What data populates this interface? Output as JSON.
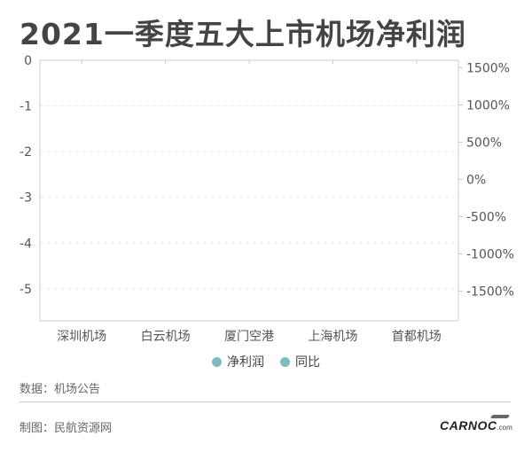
{
  "title": "2021一季度五大上市机场净利润",
  "source": "数据：机场公告",
  "credit": "制图：民航资源网",
  "logo": {
    "main": "CARNOC",
    "suffix": ".com"
  },
  "colors": {
    "series_1": "#7fbcc0",
    "series_2": "#7fbcc0",
    "axis": "#cccccc",
    "grid": "#e6e6e6",
    "tick_text": "#555555"
  },
  "chart_data": {
    "type": "bar",
    "categories": [
      "深圳机场",
      "白云机场",
      "厦门空港",
      "上海机场",
      "首都机场"
    ],
    "series": [
      {
        "name": "净利润",
        "values": [
          null,
          null,
          null,
          null,
          null
        ],
        "axis": "left"
      },
      {
        "name": "同比",
        "values": [
          null,
          null,
          null,
          null,
          null
        ],
        "axis": "right"
      }
    ],
    "y_left": {
      "ticks": [
        0,
        -1,
        -2,
        -3,
        -4,
        -5
      ],
      "tick_labels": [
        "0",
        "-1",
        "-2",
        "-3",
        "-4",
        "-5"
      ],
      "ylim": [
        -5.7,
        0
      ]
    },
    "y_right": {
      "ticks": [
        1500,
        1000,
        500,
        0,
        -500,
        -1000,
        -1500
      ],
      "tick_labels": [
        "1500%",
        "1000%",
        "500%",
        "0%",
        "-500%",
        "-1000%",
        "-1500%"
      ],
      "ylim": [
        -1900,
        1600
      ]
    },
    "grid": true,
    "legend": "bottom-center"
  }
}
